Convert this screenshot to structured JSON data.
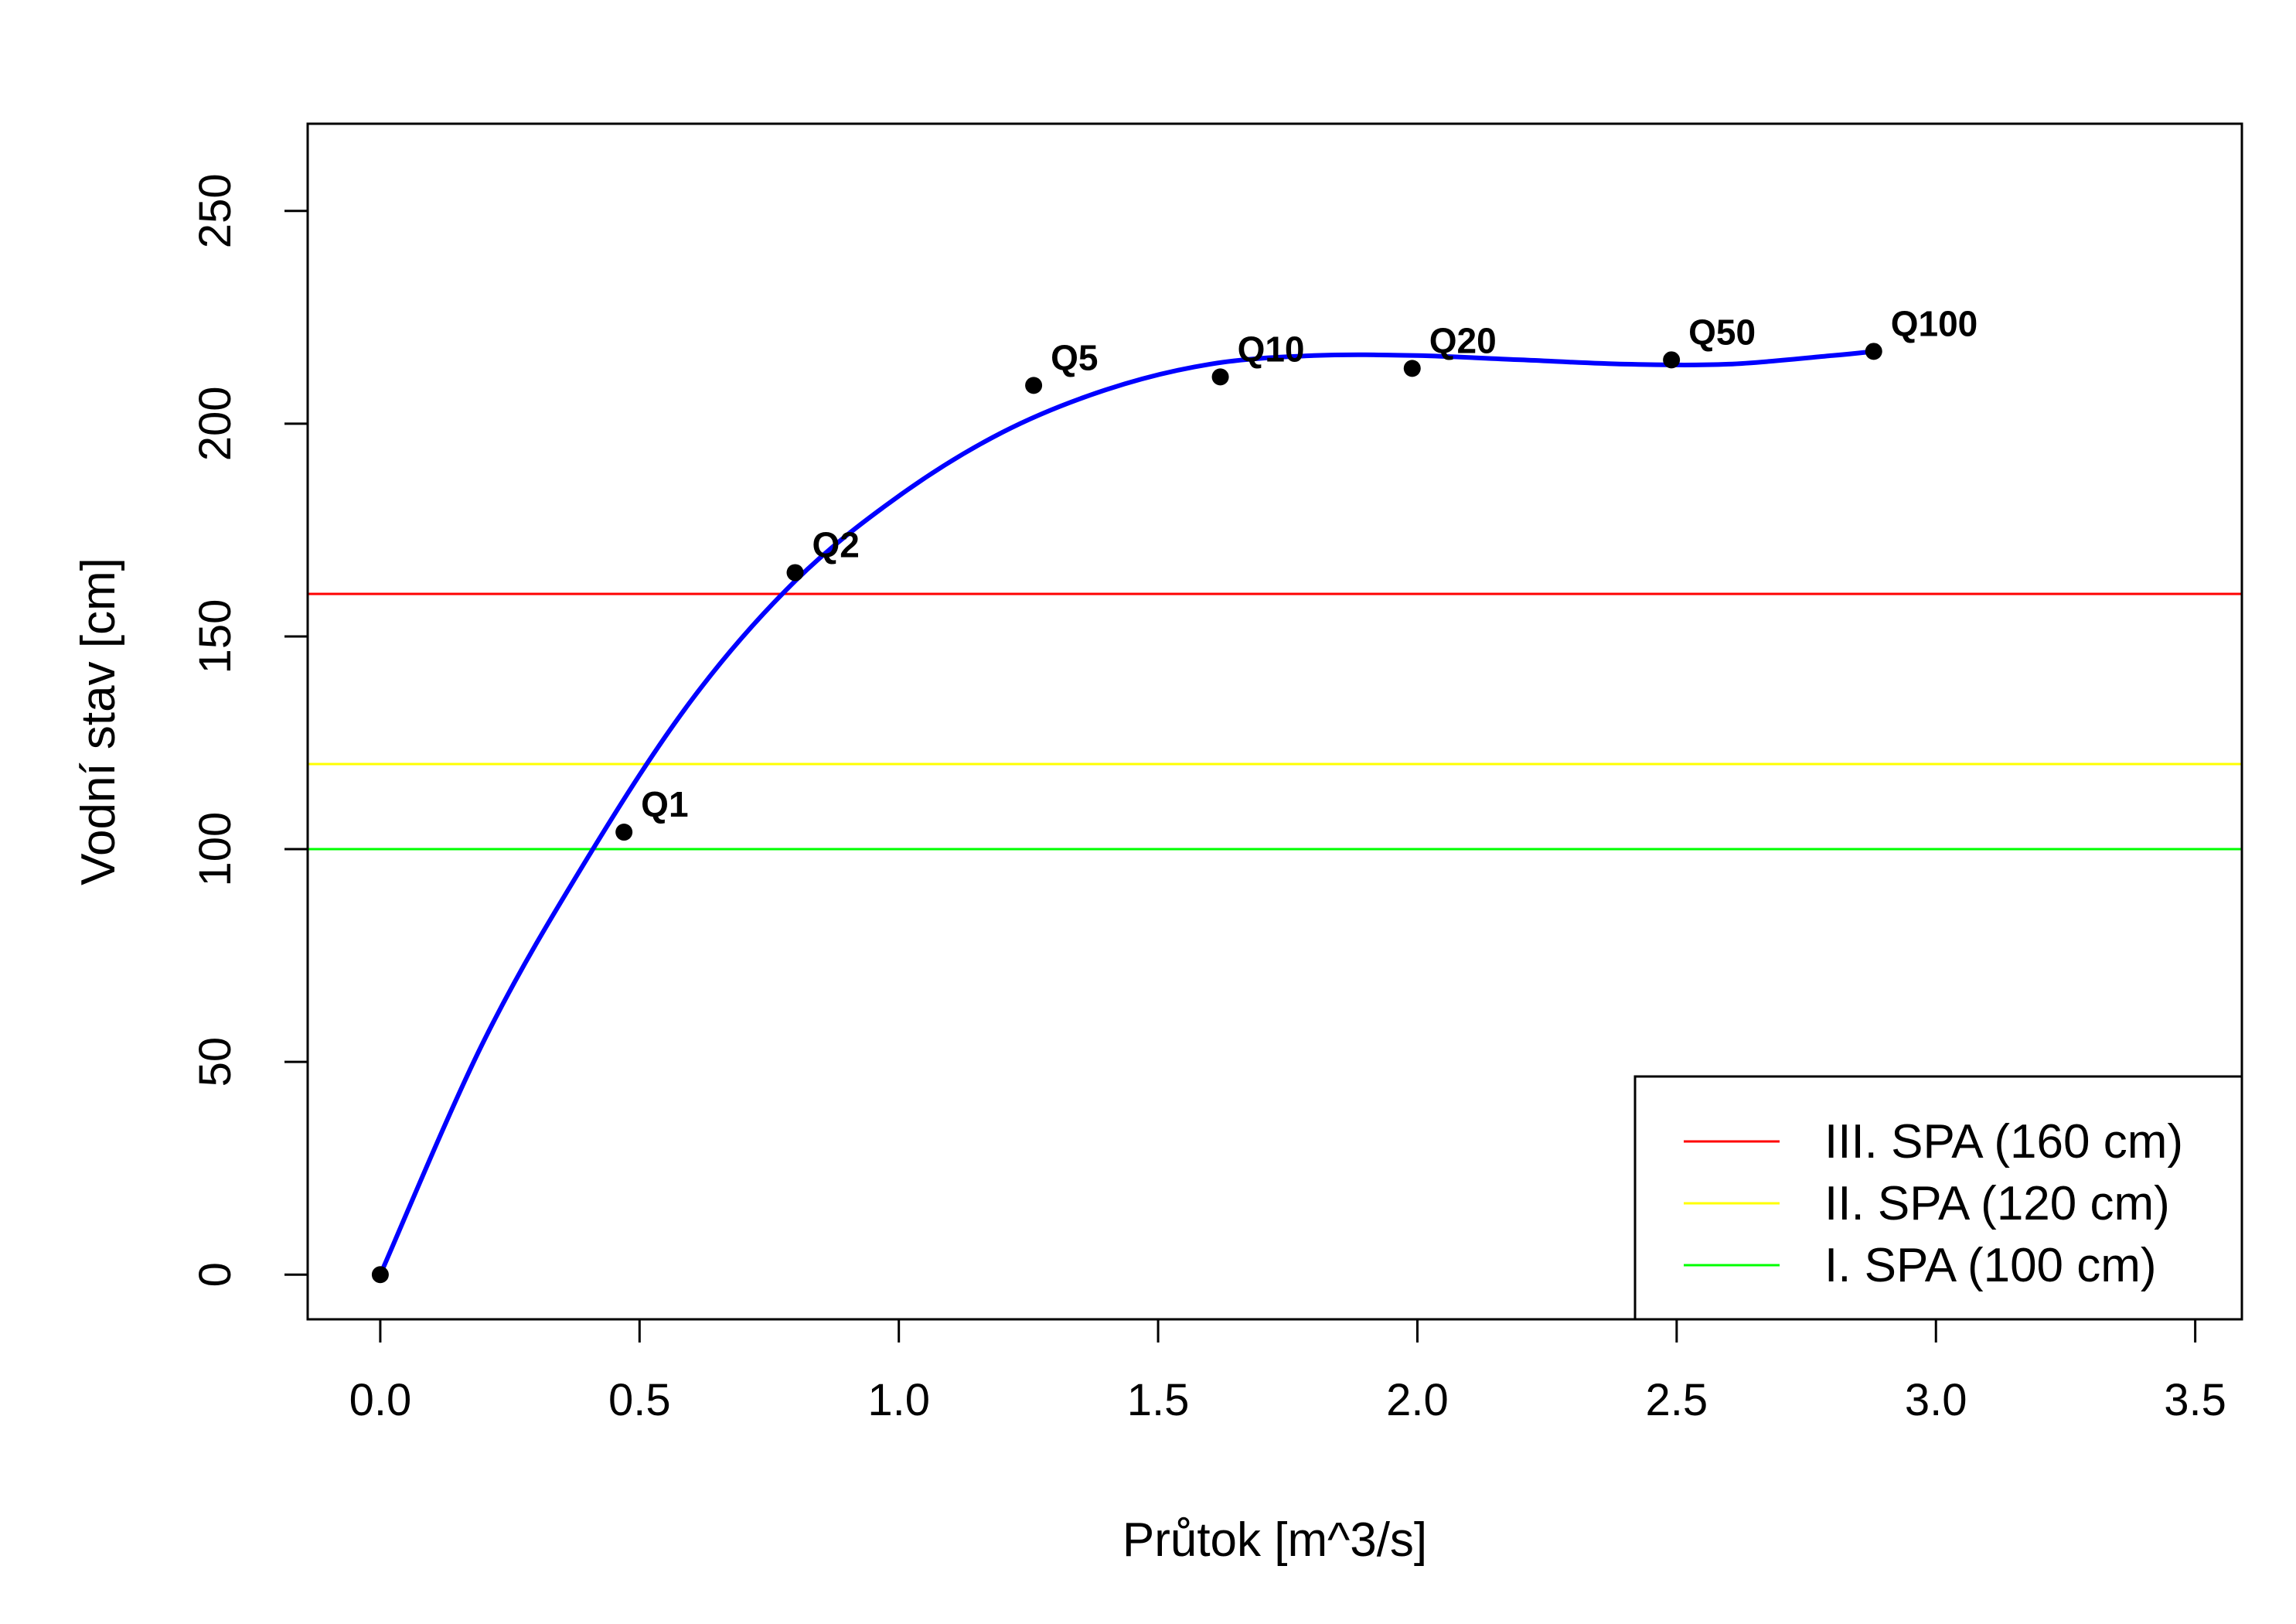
{
  "chart_data": {
    "type": "scatter",
    "xlabel": "Průtok [m^3/s]",
    "ylabel": "Vodní stav [cm]",
    "xlim": [
      -0.14,
      3.59
    ],
    "ylim": [
      -10.5,
      270.5
    ],
    "x_ticks": [
      0.0,
      0.5,
      1.0,
      1.5,
      2.0,
      2.5,
      3.0,
      3.5
    ],
    "x_tick_labels": [
      "0.0",
      "0.5",
      "1.0",
      "1.5",
      "2.0",
      "2.5",
      "3.0",
      "3.5"
    ],
    "y_ticks": [
      0,
      50,
      100,
      150,
      200,
      250
    ],
    "y_tick_labels": [
      "0",
      "50",
      "100",
      "150",
      "200",
      "250"
    ],
    "grid": false,
    "points": [
      {
        "label": "",
        "x": 0.0,
        "y": 0
      },
      {
        "label": "Q1",
        "x": 0.47,
        "y": 104
      },
      {
        "label": "Q2",
        "x": 0.8,
        "y": 165
      },
      {
        "label": "Q5",
        "x": 1.26,
        "y": 209
      },
      {
        "label": "Q10",
        "x": 1.62,
        "y": 211
      },
      {
        "label": "Q20",
        "x": 1.99,
        "y": 213
      },
      {
        "label": "Q50",
        "x": 2.49,
        "y": 215
      },
      {
        "label": "Q100",
        "x": 2.88,
        "y": 217
      }
    ],
    "curve": {
      "color": "#0000ff",
      "x": [
        0.0,
        0.2,
        0.4,
        0.6,
        0.8,
        1.0,
        1.2,
        1.4,
        1.6,
        1.8,
        2.0,
        2.2,
        2.4,
        2.6,
        2.8,
        2.88
      ],
      "y": [
        0,
        55,
        98,
        135,
        163,
        183,
        198,
        208,
        214,
        216,
        216,
        215,
        214,
        214,
        216,
        217
      ]
    },
    "hlines": [
      {
        "name": "III. SPA (160 cm)",
        "y": 160,
        "color": "#ff0000"
      },
      {
        "name": "II. SPA (120 cm)",
        "y": 120,
        "color": "#ffff00"
      },
      {
        "name": "I. SPA (100 cm)",
        "y": 100,
        "color": "#00ff00"
      }
    ],
    "legend_position": "bottom-right"
  }
}
